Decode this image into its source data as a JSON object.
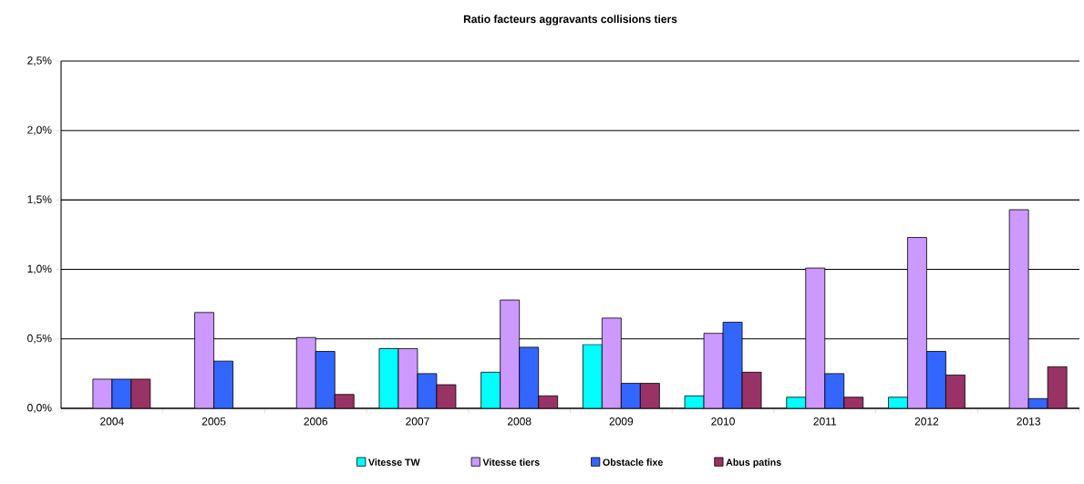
{
  "chart_data": {
    "type": "bar",
    "title": "Ratio facteurs aggravants collisions tiers",
    "categories": [
      "2004",
      "2005",
      "2006",
      "2007",
      "2008",
      "2009",
      "2010",
      "2011",
      "2012",
      "2013"
    ],
    "series": [
      {
        "name": "Vitesse TW",
        "color": "#00ffff",
        "values": [
          null,
          null,
          null,
          0.43,
          0.26,
          0.46,
          0.09,
          0.08,
          0.08,
          null
        ]
      },
      {
        "name": "Vitesse tiers",
        "color": "#cc99ff",
        "values": [
          0.21,
          0.69,
          0.51,
          0.43,
          0.78,
          0.65,
          0.54,
          1.01,
          1.23,
          1.43
        ]
      },
      {
        "name": "Obstacle fixe",
        "color": "#3366ff",
        "values": [
          0.21,
          0.34,
          0.41,
          0.25,
          0.44,
          0.18,
          0.62,
          0.25,
          0.41,
          0.07
        ]
      },
      {
        "name": "Abus patins",
        "color": "#993366",
        "values": [
          0.21,
          null,
          0.1,
          0.17,
          0.09,
          0.18,
          0.26,
          0.08,
          0.24,
          0.3
        ]
      }
    ],
    "ylim": [
      0,
      2.5
    ],
    "yticks": [
      {
        "value": 0,
        "label": "0,0%"
      },
      {
        "value": 0.5,
        "label": "0,5%"
      },
      {
        "value": 1.0,
        "label": "1,0%"
      },
      {
        "value": 1.5,
        "label": "1,5%"
      },
      {
        "value": 2.0,
        "label": "2,0%"
      },
      {
        "value": 2.5,
        "label": "2,5%"
      }
    ],
    "grid": "y",
    "legend": "bottom"
  }
}
